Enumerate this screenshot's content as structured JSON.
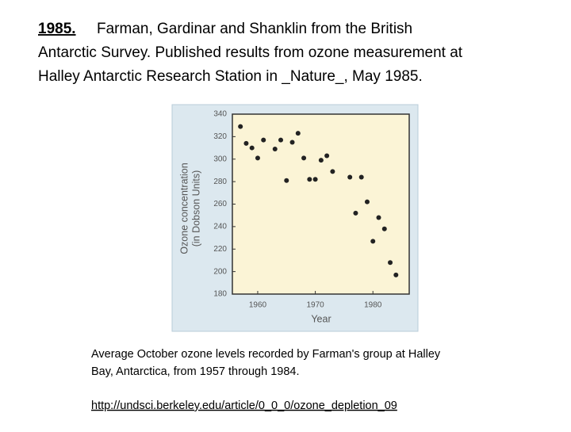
{
  "heading": {
    "lead": "1985.",
    "lines": [
      "Farman, Gardinar and Shanklin from the British",
      "Antarctic Survey. Published results from ozone measurement at",
      "Halley Antarctic Research Station in _Nature_, May 1985."
    ]
  },
  "chart_data": {
    "type": "scatter",
    "ylabel": [
      "Ozone concentration",
      "(in Dobson Units)"
    ],
    "xlabel": "Year",
    "x": [
      1957,
      1958,
      1959,
      1960,
      1961,
      1963,
      1964,
      1965,
      1966,
      1967,
      1968,
      1969,
      1970,
      1971,
      1972,
      1973,
      1976,
      1977,
      1978,
      1979,
      1980,
      1981,
      1982,
      1983,
      1984
    ],
    "values": [
      329,
      314,
      310,
      301,
      317,
      309,
      317,
      281,
      315,
      323,
      301,
      282,
      282,
      299,
      303,
      289,
      284,
      252,
      284,
      262,
      227,
      248,
      238,
      208,
      197
    ],
    "color": "#222222",
    "xlim": [
      1955.6,
      1986.3
    ],
    "xticks": [
      1960,
      1970,
      1980
    ],
    "ylim": [
      180,
      340
    ],
    "yticks": [
      180,
      200,
      220,
      240,
      260,
      280,
      300,
      320,
      340
    ]
  },
  "caption": [
    "Average October ozone levels recorded by Farman's group at Halley",
    "Bay, Antarctica, from 1957 through 1984."
  ],
  "link": "http://undsci.berkeley.edu/article/0_0_0/ozone_depletion_09"
}
